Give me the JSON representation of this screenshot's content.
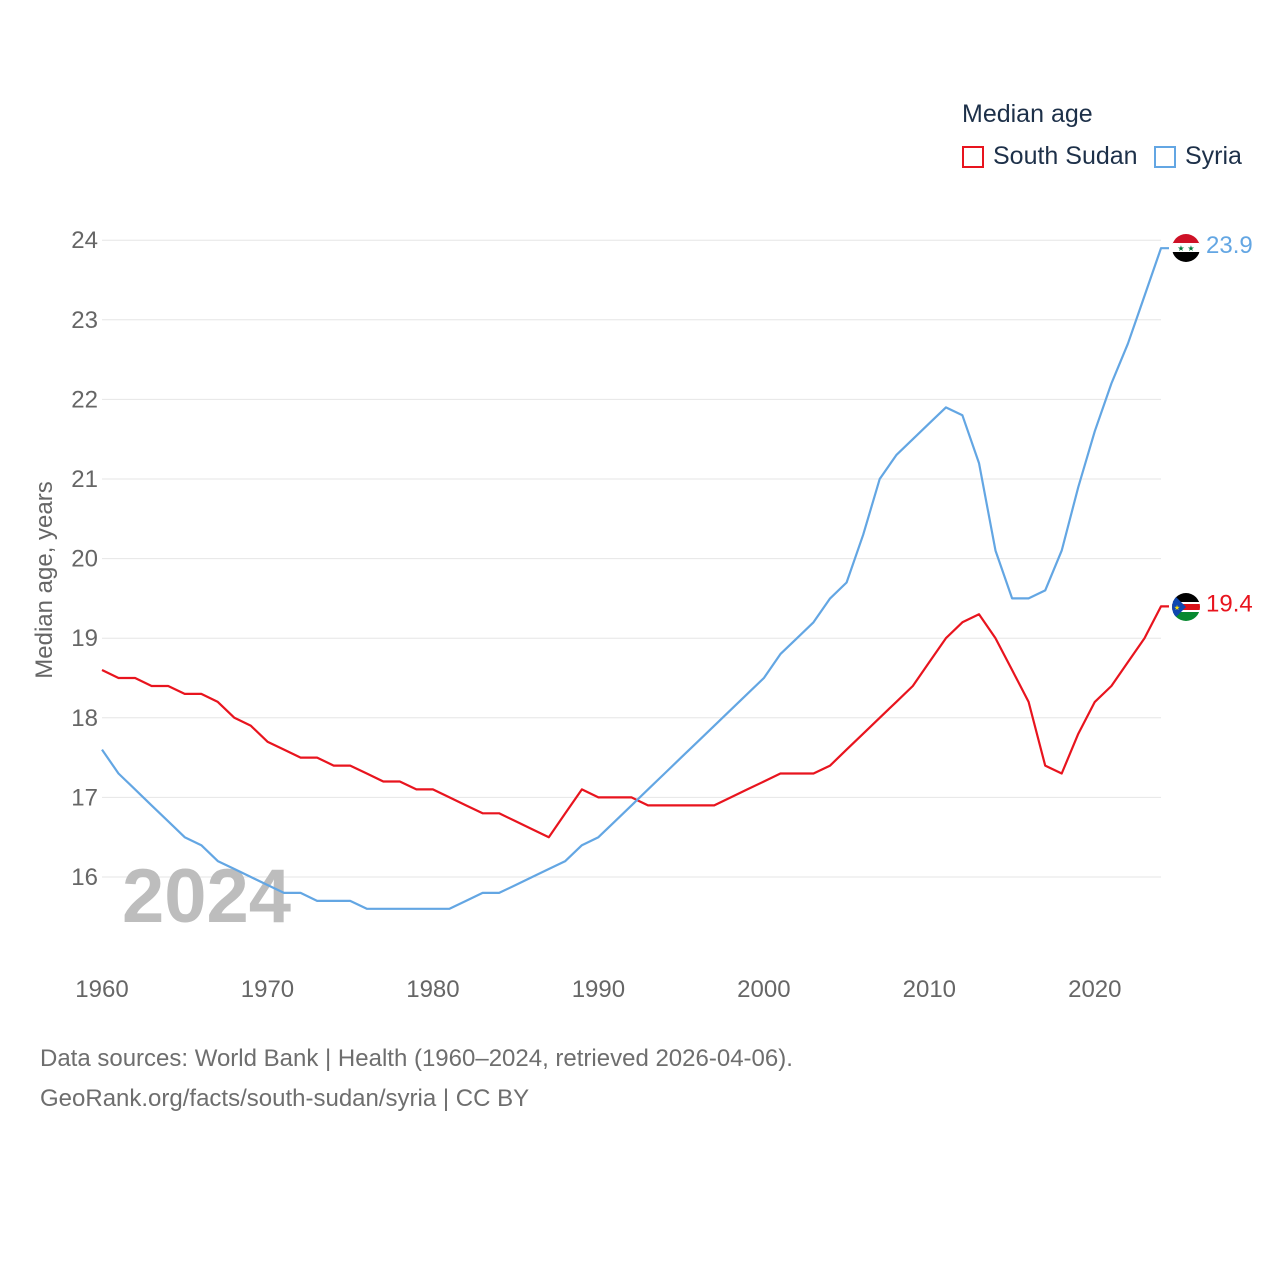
{
  "legend": {
    "title": "Median age",
    "items": [
      {
        "name": "South Sudan",
        "color": "#e8141e"
      },
      {
        "name": "Syria",
        "color": "#63a6e3"
      }
    ]
  },
  "current_year": "2024",
  "source": {
    "line1": "Data sources: World Bank | Health (1960–2024, retrieved 2026-04-06).",
    "line2": "GeoRank.org/facts/south-sudan/syria | CC BY"
  },
  "flags": [
    {
      "icon": "syria-flag-icon",
      "series": "Syria"
    },
    {
      "icon": "south-sudan-flag-icon",
      "series": "South Sudan"
    }
  ],
  "chart_data": {
    "type": "line",
    "title": "",
    "xlabel": "",
    "ylabel": "Median age, years",
    "xlim": [
      1960,
      2024
    ],
    "ylim": [
      15,
      24
    ],
    "x_ticks": [
      1960,
      1970,
      1980,
      1990,
      2000,
      2010,
      2020
    ],
    "y_ticks": [
      16,
      17,
      18,
      19,
      20,
      21,
      22,
      23,
      24
    ],
    "grid": true,
    "legend_position": "top-right",
    "x": [
      1960,
      1961,
      1962,
      1963,
      1964,
      1965,
      1966,
      1967,
      1968,
      1969,
      1970,
      1971,
      1972,
      1973,
      1974,
      1975,
      1976,
      1977,
      1978,
      1979,
      1980,
      1981,
      1982,
      1983,
      1984,
      1985,
      1986,
      1987,
      1988,
      1989,
      1990,
      1991,
      1992,
      1993,
      1994,
      1995,
      1996,
      1997,
      1998,
      1999,
      2000,
      2001,
      2002,
      2003,
      2004,
      2005,
      2006,
      2007,
      2008,
      2009,
      2010,
      2011,
      2012,
      2013,
      2014,
      2015,
      2016,
      2017,
      2018,
      2019,
      2020,
      2021,
      2022,
      2023,
      2024
    ],
    "series": [
      {
        "name": "South Sudan",
        "color": "#e8141e",
        "end_label": "19.4",
        "values": [
          18.6,
          18.5,
          18.5,
          18.4,
          18.4,
          18.3,
          18.3,
          18.2,
          18.0,
          17.9,
          17.7,
          17.6,
          17.5,
          17.5,
          17.4,
          17.4,
          17.3,
          17.2,
          17.2,
          17.1,
          17.1,
          17.0,
          16.9,
          16.8,
          16.8,
          16.7,
          16.6,
          16.5,
          16.8,
          17.1,
          17.0,
          17.0,
          17.0,
          16.9,
          16.9,
          16.9,
          16.9,
          16.9,
          17.0,
          17.1,
          17.2,
          17.3,
          17.3,
          17.3,
          17.4,
          17.6,
          17.8,
          18.0,
          18.2,
          18.4,
          18.7,
          19.0,
          19.2,
          19.3,
          19.0,
          18.6,
          18.2,
          17.4,
          17.3,
          17.8,
          18.2,
          18.4,
          18.7,
          19.0,
          19.4
        ]
      },
      {
        "name": "Syria",
        "color": "#63a6e3",
        "end_label": "23.9",
        "values": [
          17.6,
          17.3,
          17.1,
          16.9,
          16.7,
          16.5,
          16.4,
          16.2,
          16.1,
          16.0,
          15.9,
          15.8,
          15.8,
          15.7,
          15.7,
          15.7,
          15.6,
          15.6,
          15.6,
          15.6,
          15.6,
          15.6,
          15.7,
          15.8,
          15.8,
          15.9,
          16.0,
          16.1,
          16.2,
          16.4,
          16.5,
          16.7,
          16.9,
          17.1,
          17.3,
          17.5,
          17.7,
          17.9,
          18.1,
          18.3,
          18.5,
          18.8,
          19.0,
          19.2,
          19.5,
          19.7,
          20.3,
          21.0,
          21.3,
          21.5,
          21.7,
          21.9,
          21.8,
          21.2,
          20.1,
          19.5,
          19.5,
          19.6,
          20.1,
          20.9,
          21.6,
          22.2,
          22.7,
          23.3,
          23.9
        ]
      }
    ]
  }
}
